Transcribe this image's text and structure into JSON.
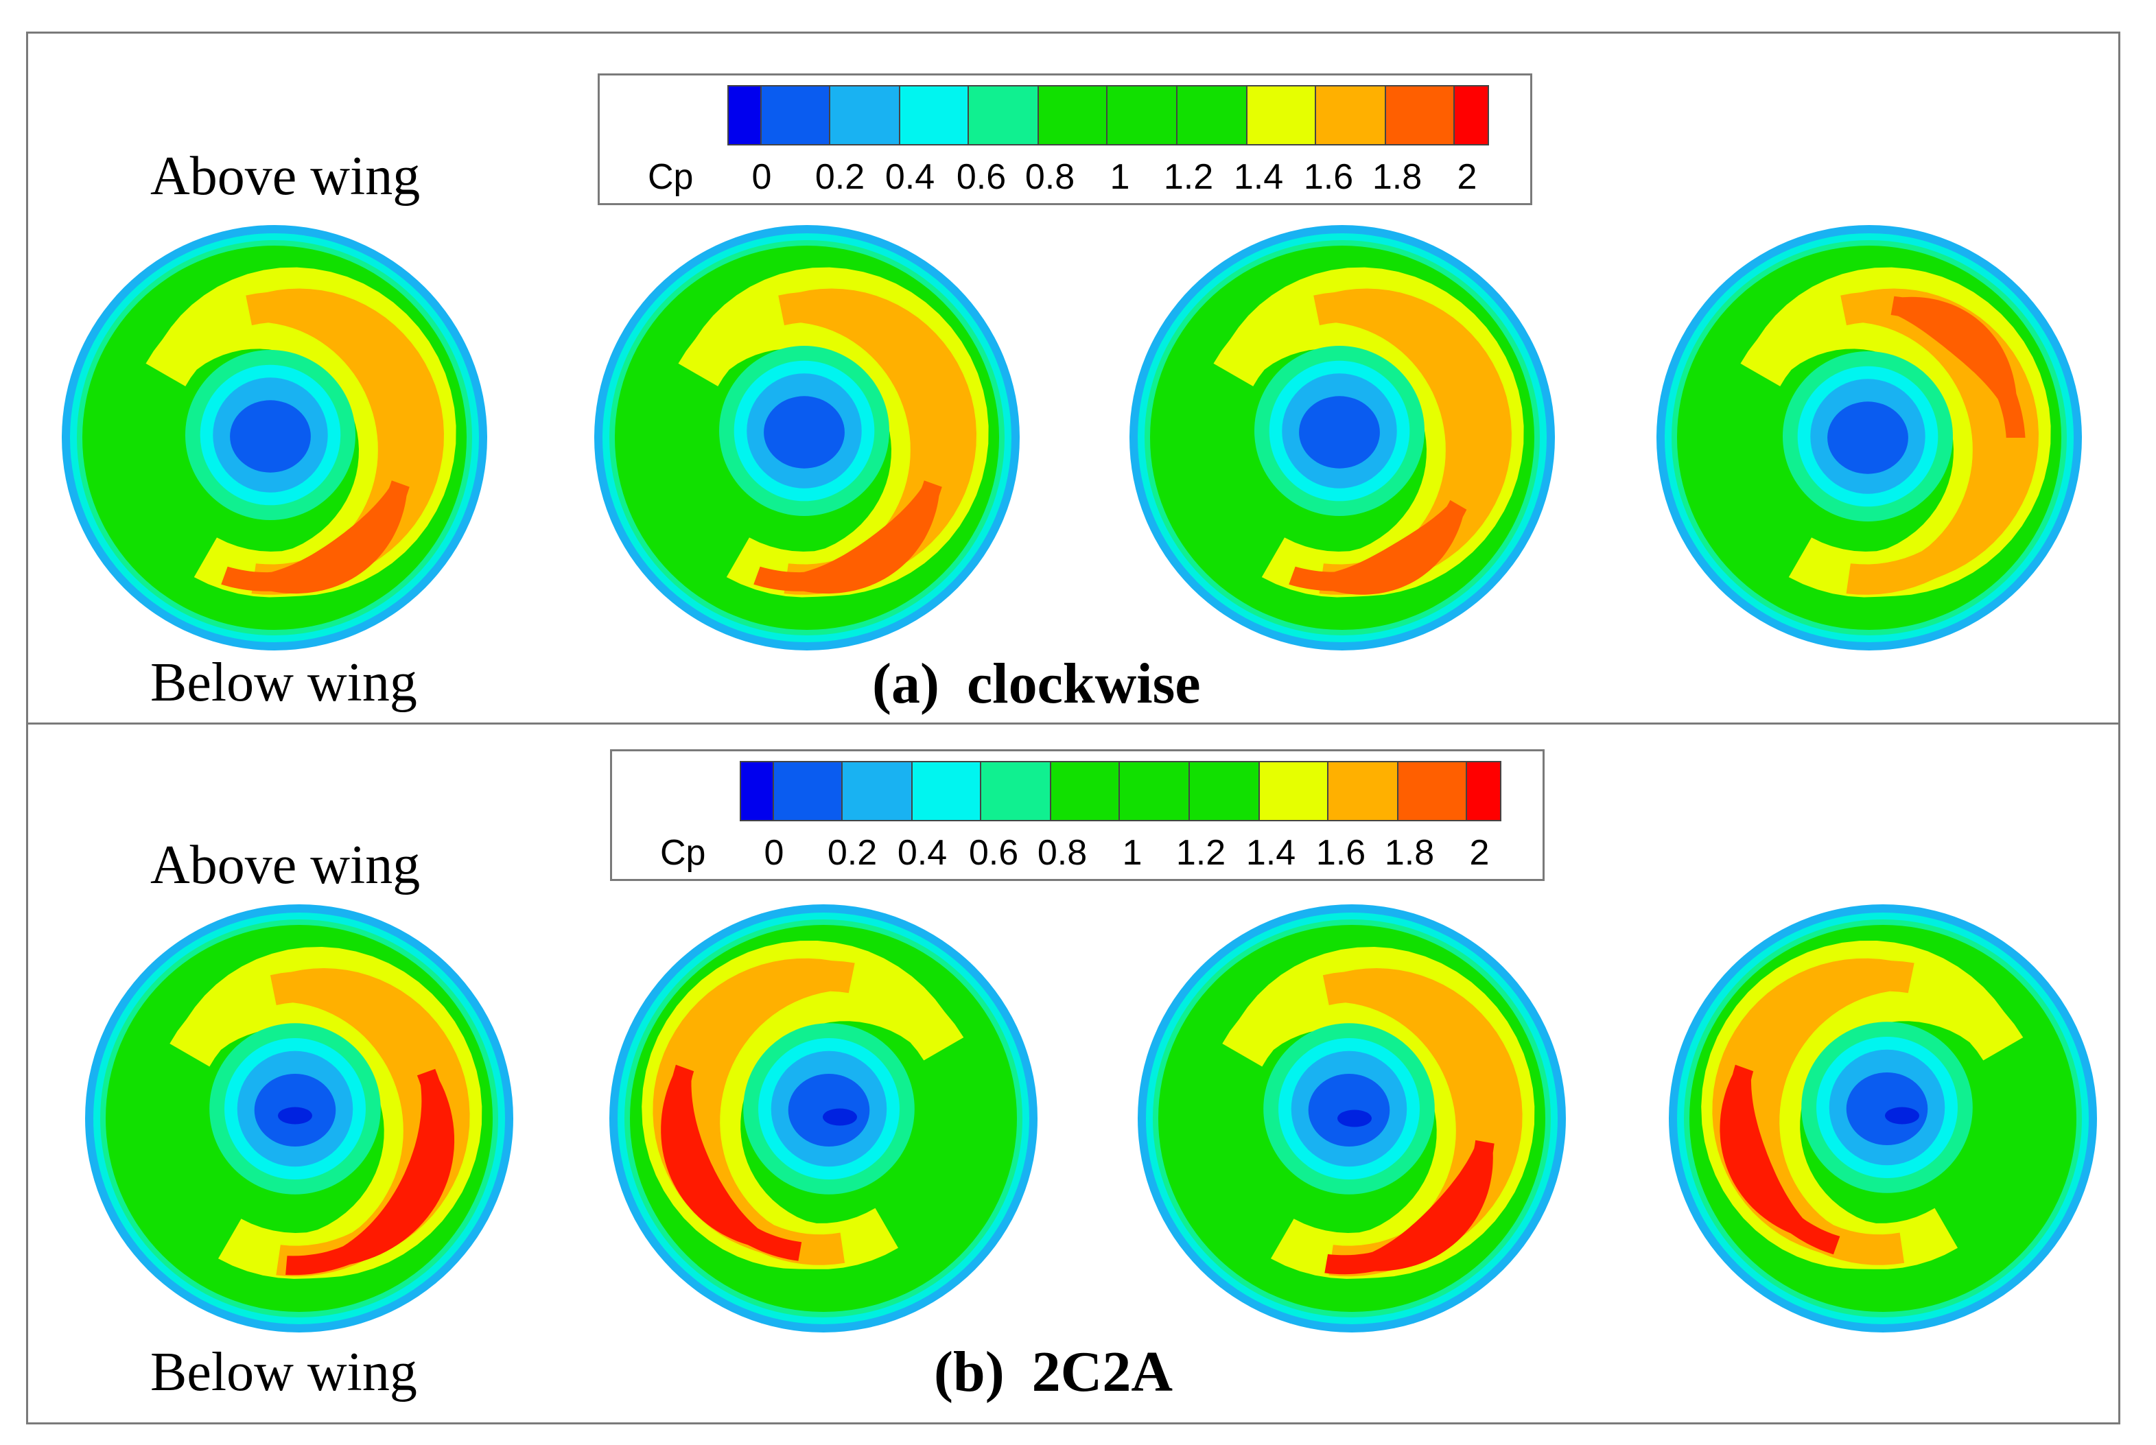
{
  "legend": {
    "title": "Cp",
    "ticks": [
      "0",
      "0.2",
      "0.4",
      "0.6",
      "0.8",
      "1",
      "1.2",
      "1.4",
      "1.6",
      "1.8",
      "2"
    ],
    "colors": [
      "#0000ee",
      "#0a5cf0",
      "#19b2f2",
      "#00f5f0",
      "#10f090",
      "#11e000",
      "#11e000",
      "#11e000",
      "#e6ff00",
      "#ffb000",
      "#ff5f00",
      "#ff0000"
    ]
  },
  "labels": {
    "above": "Above wing",
    "below": "Below wing"
  },
  "panels": [
    {
      "id": "a",
      "letter": "(a)",
      "name": "clockwise"
    },
    {
      "id": "b",
      "letter": "(b)",
      "name": "2C2A"
    }
  ],
  "colors": {
    "ring_edge": "#19b2f2",
    "ring_inner": "#00f0e0",
    "green": "#11e000",
    "yellow": "#e6ff00",
    "orange": "#ffb000",
    "red_orange": "#ff5f00",
    "red": "#ff1a00",
    "blue_mid": "#19b2f2",
    "blue_core": "#0a5cf0",
    "blue_deep": "#0022e0",
    "frame": "#7a7a7a"
  }
}
